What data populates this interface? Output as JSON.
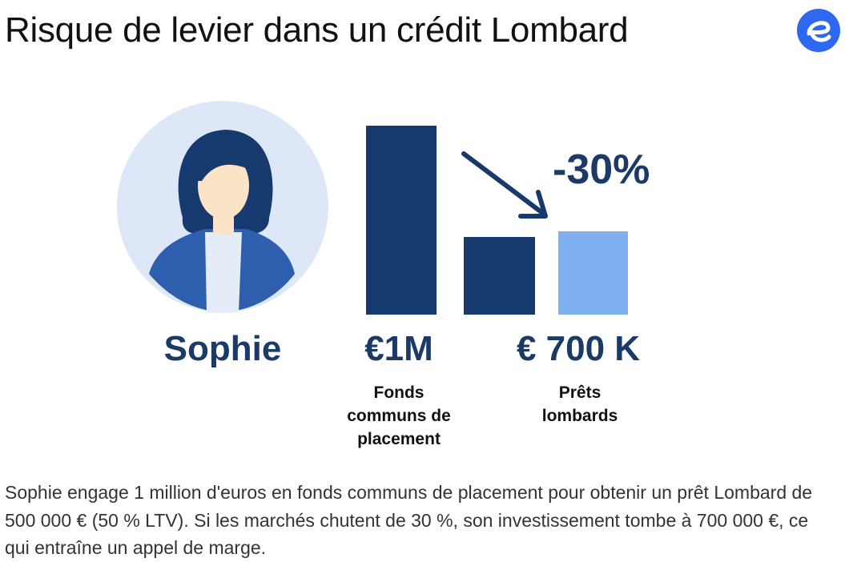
{
  "header": {
    "title": "Risque de levier dans un crédit Lombard",
    "logo_icon": "e-brand-logo-icon"
  },
  "illustration": {
    "person_name": "Sophie",
    "person_icon": "woman-avatar-icon",
    "arrow_icon": "down-right-arrow-icon",
    "drop_label": "-30%",
    "left_value": "€1M",
    "left_category": "Fonds\ncommuns de\nplacement",
    "right_value": "€ 700 K",
    "right_category": "Prêts\nlombards"
  },
  "description": "Sophie engage 1 million d'euros en fonds communs de placement pour obtenir un prêt Lombard de 500 000 € (50 % LTV). Si les marchés chutent de 30 %, son investissement tombe à 700 000 €, ce qui entraîne un appel de marge.",
  "colors": {
    "dark_navy": "#173a6e",
    "light_blue": "#7fb0ef",
    "avatar_bg": "#dde7f7",
    "text_navy": "#1b3a66",
    "brand_blue": "#2f68f0"
  }
}
